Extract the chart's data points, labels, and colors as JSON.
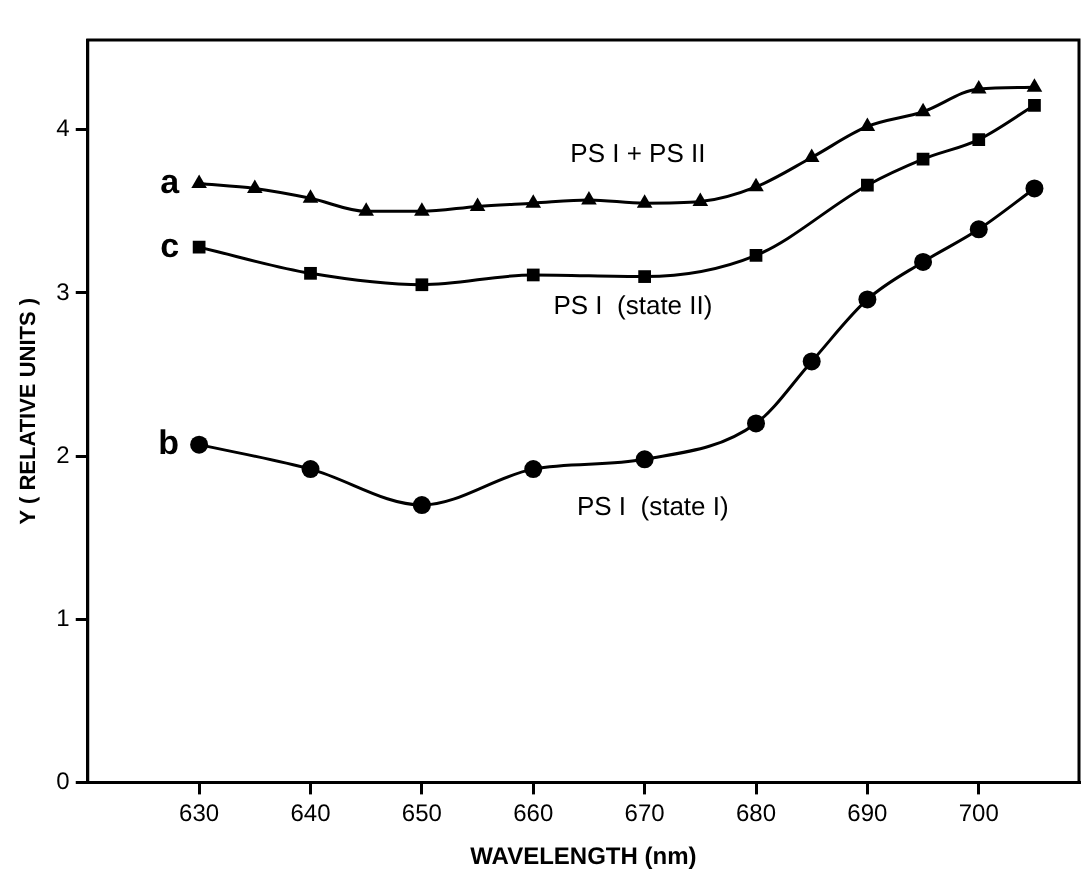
{
  "chart_data": {
    "type": "line",
    "xlabel": "WAVELENGTH (nm)",
    "ylabel": "Y ( RELATIVE UNITS )",
    "xlim": [
      620,
      709
    ],
    "xticks": [
      630,
      640,
      650,
      660,
      670,
      680,
      690,
      700
    ],
    "ylim": [
      0,
      4.55
    ],
    "yticks": [
      0,
      1,
      2,
      3,
      4
    ],
    "grid": false,
    "legend": false,
    "line_style": "solid",
    "series": [
      {
        "name": "a",
        "color": "#000000",
        "marker": "triangle",
        "x": [
          630,
          635,
          640,
          645,
          650,
          655,
          660,
          665,
          670,
          675,
          680,
          685,
          690,
          695,
          700,
          705
        ],
        "values": [
          3.67,
          3.64,
          3.58,
          3.5,
          3.5,
          3.53,
          3.55,
          3.57,
          3.55,
          3.56,
          3.65,
          3.83,
          4.02,
          4.11,
          4.25,
          4.26
        ]
      },
      {
        "name": "c",
        "color": "#000000",
        "marker": "square",
        "x": [
          630,
          640,
          650,
          660,
          670,
          680,
          690,
          695,
          700,
          705
        ],
        "values": [
          3.28,
          3.12,
          3.05,
          3.11,
          3.1,
          3.23,
          3.66,
          3.82,
          3.94,
          4.15
        ]
      },
      {
        "name": "b",
        "color": "#000000",
        "marker": "circle",
        "x": [
          630,
          640,
          650,
          660,
          670,
          680,
          685,
          690,
          695,
          700,
          705
        ],
        "values": [
          2.07,
          1.92,
          1.7,
          1.92,
          1.98,
          2.2,
          2.58,
          2.96,
          3.19,
          3.39,
          3.64
        ]
      }
    ],
    "annotations": [
      "PS I + PS II",
      "PS I  (state II)",
      "PS I  (state I)"
    ]
  }
}
